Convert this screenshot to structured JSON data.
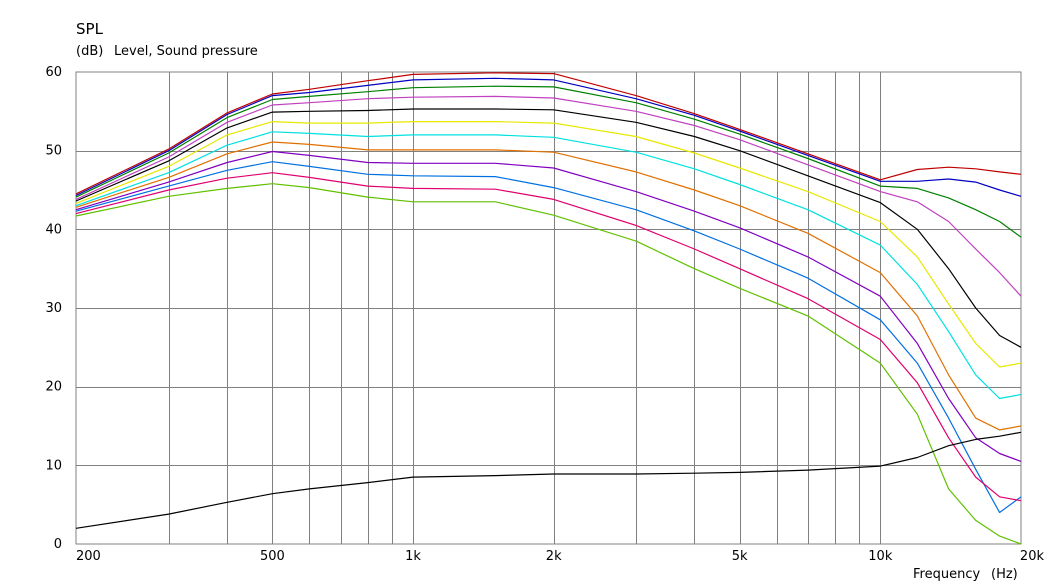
{
  "chart_data": {
    "type": "line",
    "title": "SPL",
    "subtitle_unit": "(dB)",
    "subtitle_text": "Level, Sound pressure",
    "xlabel_text": "Frequency",
    "xlabel_unit": "(Hz)",
    "x_scale": "log",
    "xlim": [
      190,
      20000
    ],
    "ylim": [
      0,
      60
    ],
    "grid": true,
    "y_ticks": [
      {
        "value": 0,
        "label": "0"
      },
      {
        "value": 10,
        "label": "10"
      },
      {
        "value": 20,
        "label": "20"
      },
      {
        "value": 30,
        "label": "30"
      },
      {
        "value": 40,
        "label": "40"
      },
      {
        "value": 50,
        "label": "50"
      },
      {
        "value": 60,
        "label": "60"
      }
    ],
    "x_tick_labels": [
      {
        "value": 200,
        "label": "200"
      },
      {
        "value": 500,
        "label": "500"
      },
      {
        "value": 1000,
        "label": "1k"
      },
      {
        "value": 2000,
        "label": "2k"
      },
      {
        "value": 5000,
        "label": "5k"
      },
      {
        "value": 10000,
        "label": "10k"
      },
      {
        "value": 20000,
        "label": "20k"
      }
    ],
    "x_gridlines": [
      300,
      400,
      500,
      600,
      700,
      800,
      900,
      1000,
      2000,
      3000,
      4000,
      5000,
      6000,
      7000,
      8000,
      9000,
      10000
    ],
    "x": [
      190,
      300,
      400,
      500,
      600,
      800,
      1000,
      1500,
      2000,
      3000,
      4000,
      5000,
      7000,
      10000,
      12000,
      14000,
      16000,
      18000,
      20000
    ],
    "series": [
      {
        "color": "#c00000",
        "values": [
          44.5,
          50.2,
          54.8,
          57.2,
          57.8,
          58.9,
          59.7,
          59.9,
          59.8,
          57.0,
          54.7,
          52.7,
          49.6,
          46.3,
          47.6,
          47.9,
          47.7,
          47.3,
          47.0
        ]
      },
      {
        "color": "#0000c0",
        "values": [
          44.3,
          50.0,
          54.6,
          57.0,
          57.4,
          58.3,
          59.0,
          59.2,
          59.0,
          56.6,
          54.5,
          52.5,
          49.4,
          46.1,
          46.1,
          46.4,
          46.0,
          45.0,
          44.2
        ]
      },
      {
        "color": "#008000",
        "values": [
          44.1,
          49.7,
          54.2,
          56.5,
          56.9,
          57.5,
          58.0,
          58.2,
          58.1,
          56.1,
          54.0,
          52.1,
          49.0,
          45.5,
          45.2,
          44.0,
          42.5,
          41.0,
          39.0
        ]
      },
      {
        "color": "#c040c0",
        "values": [
          43.8,
          49.2,
          53.6,
          55.8,
          56.1,
          56.6,
          56.8,
          56.9,
          56.7,
          55.0,
          53.2,
          51.4,
          48.2,
          44.8,
          43.5,
          41.0,
          37.5,
          34.5,
          31.5
        ]
      },
      {
        "color": "#000000",
        "values": [
          43.6,
          48.7,
          52.9,
          54.9,
          55.0,
          55.1,
          55.3,
          55.3,
          55.2,
          53.6,
          51.8,
          50.0,
          46.8,
          43.4,
          40.0,
          35.0,
          30.0,
          26.5,
          25.0
        ]
      },
      {
        "color": "#e8e800",
        "values": [
          43.3,
          48.0,
          52.0,
          53.7,
          53.5,
          53.5,
          53.7,
          53.7,
          53.5,
          51.8,
          49.7,
          47.8,
          44.8,
          41.0,
          36.5,
          30.5,
          25.5,
          22.5,
          23.0
        ]
      },
      {
        "color": "#00e0e0",
        "values": [
          43.0,
          47.2,
          50.7,
          52.4,
          52.2,
          51.8,
          52.0,
          52.0,
          51.7,
          49.8,
          47.7,
          45.7,
          42.5,
          38.0,
          33.0,
          27.0,
          21.5,
          18.5,
          19.0
        ]
      },
      {
        "color": "#e07000",
        "values": [
          42.8,
          46.6,
          49.6,
          51.1,
          50.8,
          50.1,
          50.1,
          50.1,
          49.8,
          47.3,
          45.0,
          43.0,
          39.5,
          34.5,
          29.0,
          21.5,
          16.0,
          14.5,
          15.0
        ]
      },
      {
        "color": "#8000c0",
        "values": [
          42.5,
          46.0,
          48.5,
          49.9,
          49.4,
          48.5,
          48.4,
          48.4,
          47.8,
          44.8,
          42.3,
          40.2,
          36.5,
          31.5,
          25.5,
          18.5,
          13.5,
          11.5,
          10.5
        ]
      },
      {
        "color": "#0070e0",
        "values": [
          42.3,
          45.5,
          47.5,
          48.6,
          48.0,
          47.0,
          46.8,
          46.7,
          45.3,
          42.5,
          39.8,
          37.5,
          33.8,
          28.5,
          23.0,
          16.0,
          9.5,
          4.0,
          6.0
        ]
      },
      {
        "color": "#e0006f",
        "values": [
          42.0,
          45.0,
          46.5,
          47.2,
          46.6,
          45.5,
          45.2,
          45.1,
          43.8,
          40.5,
          37.5,
          35.0,
          31.2,
          26.0,
          20.5,
          13.5,
          8.5,
          6.0,
          5.5
        ]
      },
      {
        "color": "#60c000",
        "values": [
          41.7,
          44.2,
          45.2,
          45.8,
          45.3,
          44.1,
          43.5,
          43.5,
          41.8,
          38.5,
          35.0,
          32.5,
          29.0,
          23.0,
          16.5,
          7.0,
          3.0,
          1.0,
          0
        ]
      },
      {
        "color": "#000000",
        "values": [
          2.0,
          3.8,
          5.3,
          6.4,
          7.0,
          7.8,
          8.5,
          8.7,
          8.9,
          8.9,
          9.0,
          9.1,
          9.4,
          9.9,
          11.0,
          12.5,
          13.3,
          13.7,
          14.2
        ]
      }
    ]
  }
}
